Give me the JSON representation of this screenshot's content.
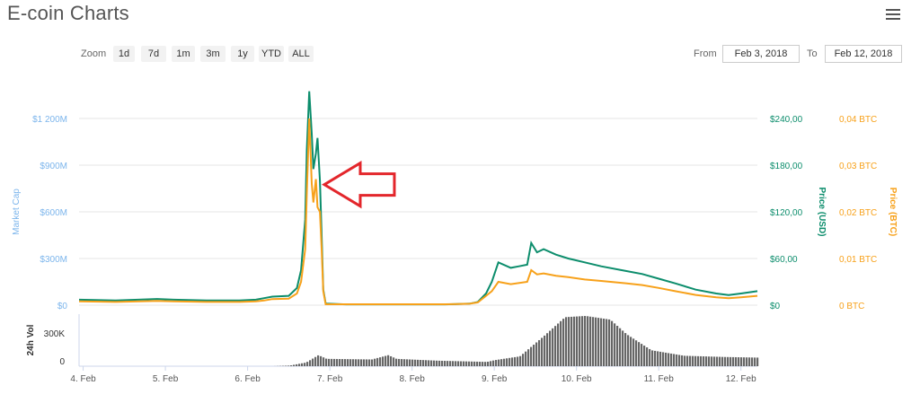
{
  "header": {
    "title": "E-coin Charts",
    "menu_icon": "hamburger-menu-icon"
  },
  "controls": {
    "zoom_label": "Zoom",
    "zoom_buttons": [
      "1d",
      "7d",
      "1m",
      "3m",
      "1y",
      "YTD",
      "ALL"
    ],
    "from_label": "From",
    "from_value": "Feb 3, 2018",
    "to_label": "To",
    "to_value": "Feb 12, 2018"
  },
  "chart_data": {
    "type": "line",
    "axes": {
      "market_cap": {
        "label": "Market Cap",
        "ticks": [
          "$0",
          "$300M",
          "$600M",
          "$900M",
          "$1 200M"
        ],
        "range": [
          0,
          1200
        ]
      },
      "price_usd": {
        "label": "Price (USD)",
        "ticks": [
          "$0",
          "$60,00",
          "$120,00",
          "$180,00",
          "$240,00"
        ],
        "range": [
          0,
          240
        ]
      },
      "price_btc": {
        "label": "Price (BTC)",
        "ticks": [
          "0 BTC",
          "0,01 BTC",
          "0,02 BTC",
          "0,03 BTC",
          "0,04 BTC"
        ],
        "range": [
          0,
          0.04
        ]
      },
      "volume": {
        "label": "24h Vol",
        "ticks": [
          "0",
          "300K"
        ]
      },
      "x": {
        "ticks": [
          "4. Feb",
          "5. Feb",
          "6. Feb",
          "7. Feb",
          "8. Feb",
          "9. Feb",
          "10. Feb",
          "11. Feb",
          "12. Feb"
        ],
        "range": [
          3.95,
          12.2
        ]
      }
    },
    "series": [
      {
        "name": "Price (USD)",
        "color": "#0c8d6c",
        "points": [
          [
            3.95,
            7
          ],
          [
            4.4,
            6
          ],
          [
            4.9,
            8
          ],
          [
            5.1,
            7
          ],
          [
            5.5,
            6
          ],
          [
            5.9,
            6
          ],
          [
            6.1,
            7
          ],
          [
            6.2,
            9
          ],
          [
            6.3,
            11
          ],
          [
            6.5,
            12
          ],
          [
            6.6,
            22
          ],
          [
            6.65,
            45
          ],
          [
            6.7,
            110
          ],
          [
            6.72,
            200
          ],
          [
            6.75,
            275
          ],
          [
            6.78,
            220
          ],
          [
            6.8,
            175
          ],
          [
            6.83,
            195
          ],
          [
            6.85,
            215
          ],
          [
            6.88,
            160
          ],
          [
            6.9,
            90
          ],
          [
            6.92,
            20
          ],
          [
            6.95,
            2
          ],
          [
            7.2,
            1
          ],
          [
            7.6,
            1
          ],
          [
            8.0,
            1
          ],
          [
            8.4,
            1
          ],
          [
            8.7,
            2
          ],
          [
            8.8,
            4
          ],
          [
            8.9,
            15
          ],
          [
            8.97,
            30
          ],
          [
            9.05,
            55
          ],
          [
            9.2,
            48
          ],
          [
            9.3,
            50
          ],
          [
            9.4,
            52
          ],
          [
            9.45,
            80
          ],
          [
            9.52,
            68
          ],
          [
            9.6,
            72
          ],
          [
            9.75,
            65
          ],
          [
            9.9,
            60
          ],
          [
            10.1,
            55
          ],
          [
            10.3,
            50
          ],
          [
            10.6,
            44
          ],
          [
            10.8,
            40
          ],
          [
            11.0,
            34
          ],
          [
            11.2,
            28
          ],
          [
            11.45,
            20
          ],
          [
            11.7,
            15
          ],
          [
            11.85,
            13
          ],
          [
            12.0,
            15
          ],
          [
            12.2,
            18
          ]
        ]
      },
      {
        "name": "Price (BTC)",
        "color": "#f7a11a",
        "points": [
          [
            3.95,
            0.0008
          ],
          [
            4.4,
            0.0007
          ],
          [
            4.9,
            0.0009
          ],
          [
            5.1,
            0.0008
          ],
          [
            5.5,
            0.0007
          ],
          [
            5.9,
            0.0007
          ],
          [
            6.1,
            0.0008
          ],
          [
            6.2,
            0.001
          ],
          [
            6.3,
            0.0013
          ],
          [
            6.5,
            0.0014
          ],
          [
            6.6,
            0.0025
          ],
          [
            6.65,
            0.005
          ],
          [
            6.7,
            0.012
          ],
          [
            6.72,
            0.024
          ],
          [
            6.75,
            0.04
          ],
          [
            6.78,
            0.026
          ],
          [
            6.8,
            0.022
          ],
          [
            6.83,
            0.027
          ],
          [
            6.85,
            0.021
          ],
          [
            6.88,
            0.02
          ],
          [
            6.9,
            0.012
          ],
          [
            6.92,
            0.003
          ],
          [
            6.95,
            0.0002
          ],
          [
            7.6,
            0.0002
          ],
          [
            8.4,
            0.0002
          ],
          [
            8.7,
            0.0003
          ],
          [
            8.8,
            0.0006
          ],
          [
            8.9,
            0.002
          ],
          [
            8.97,
            0.003
          ],
          [
            9.05,
            0.005
          ],
          [
            9.2,
            0.0045
          ],
          [
            9.4,
            0.005
          ],
          [
            9.45,
            0.0075
          ],
          [
            9.52,
            0.0066
          ],
          [
            9.6,
            0.0068
          ],
          [
            9.75,
            0.0063
          ],
          [
            9.9,
            0.006
          ],
          [
            10.1,
            0.0055
          ],
          [
            10.3,
            0.0052
          ],
          [
            10.6,
            0.0047
          ],
          [
            10.8,
            0.0043
          ],
          [
            11.0,
            0.0037
          ],
          [
            11.2,
            0.003
          ],
          [
            11.45,
            0.0022
          ],
          [
            11.7,
            0.0017
          ],
          [
            11.85,
            0.0015
          ],
          [
            12.0,
            0.0017
          ],
          [
            12.2,
            0.002
          ]
        ]
      },
      {
        "name": "24h Vol",
        "color": "#666666",
        "points": [
          [
            3.95,
            0
          ],
          [
            6.3,
            0
          ],
          [
            6.5,
            5
          ],
          [
            6.7,
            30
          ],
          [
            6.85,
            90
          ],
          [
            6.95,
            60
          ],
          [
            7.5,
            55
          ],
          [
            7.7,
            90
          ],
          [
            7.8,
            60
          ],
          [
            8.3,
            45
          ],
          [
            8.9,
            35
          ],
          [
            9.0,
            50
          ],
          [
            9.3,
            80
          ],
          [
            9.6,
            250
          ],
          [
            9.85,
            400
          ],
          [
            10.1,
            410
          ],
          [
            10.4,
            380
          ],
          [
            10.6,
            260
          ],
          [
            10.9,
            130
          ],
          [
            11.3,
            85
          ],
          [
            11.8,
            75
          ],
          [
            12.2,
            70
          ]
        ]
      }
    ],
    "annotation": {
      "type": "red-arrow",
      "points_to": [
        6.9,
        155
      ]
    },
    "grid": true,
    "legend": "none"
  }
}
